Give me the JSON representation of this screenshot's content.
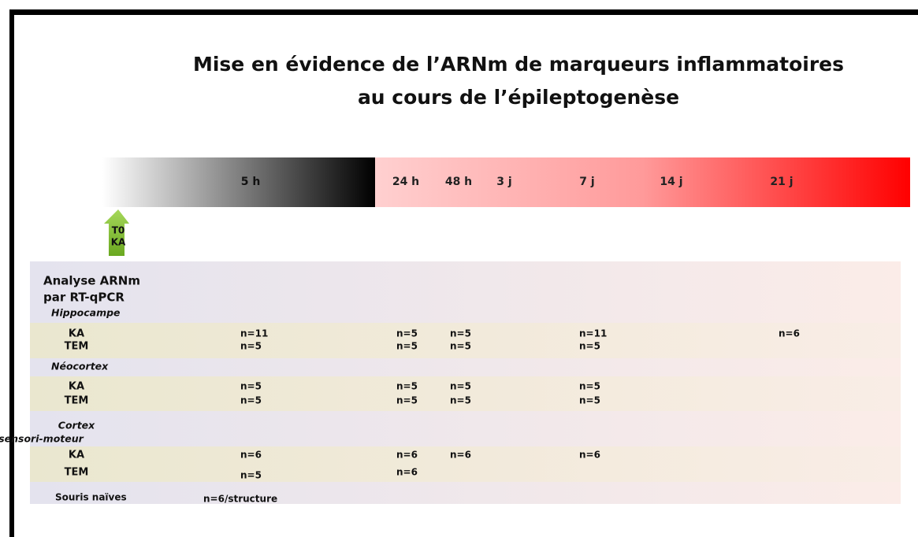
{
  "title": [
    "Mise en évidence de l’ARNm de marqueurs inflammatoires",
    "au cours de l’épileptogenèse"
  ],
  "timeline": [
    "5 h",
    "24 h",
    "48 h",
    "3 j",
    "7 j",
    "14 j",
    "21 j"
  ],
  "injection": [
    "T0",
    "KA"
  ],
  "heading": [
    "Analyse ARNm",
    "par RT-qPCR"
  ],
  "sections": [
    {
      "name": [
        "Hippocampe"
      ],
      "rows": [
        {
          "label": "KA",
          "cells": [
            "n=11",
            "n=5",
            "n=5",
            null,
            "n=11",
            null,
            "n=6"
          ]
        },
        {
          "label": "TEM",
          "cells": [
            "n=5",
            "n=5",
            "n=5",
            null,
            "n=5",
            null,
            null
          ]
        }
      ]
    },
    {
      "name": [
        "Néocortex"
      ],
      "rows": [
        {
          "label": "KA",
          "cells": [
            "n=5",
            "n=5",
            "n=5",
            null,
            "n=5",
            null,
            null
          ]
        },
        {
          "label": "TEM",
          "cells": [
            "n=5",
            "n=5",
            "n=5",
            null,
            "n=5",
            null,
            null
          ]
        }
      ]
    },
    {
      "name": [
        "Cortex",
        "sensori-moteur"
      ],
      "rows": [
        {
          "label": "KA",
          "cells": [
            "n=6",
            "n=6",
            "n=6",
            null,
            "n=6",
            null,
            null
          ]
        },
        {
          "label": "TEM",
          "cells": [
            "n=5",
            "n=6",
            null,
            null,
            null,
            null,
            null
          ]
        }
      ]
    }
  ],
  "naive": {
    "label": "Souris naïves",
    "value": "n=6/structure"
  }
}
